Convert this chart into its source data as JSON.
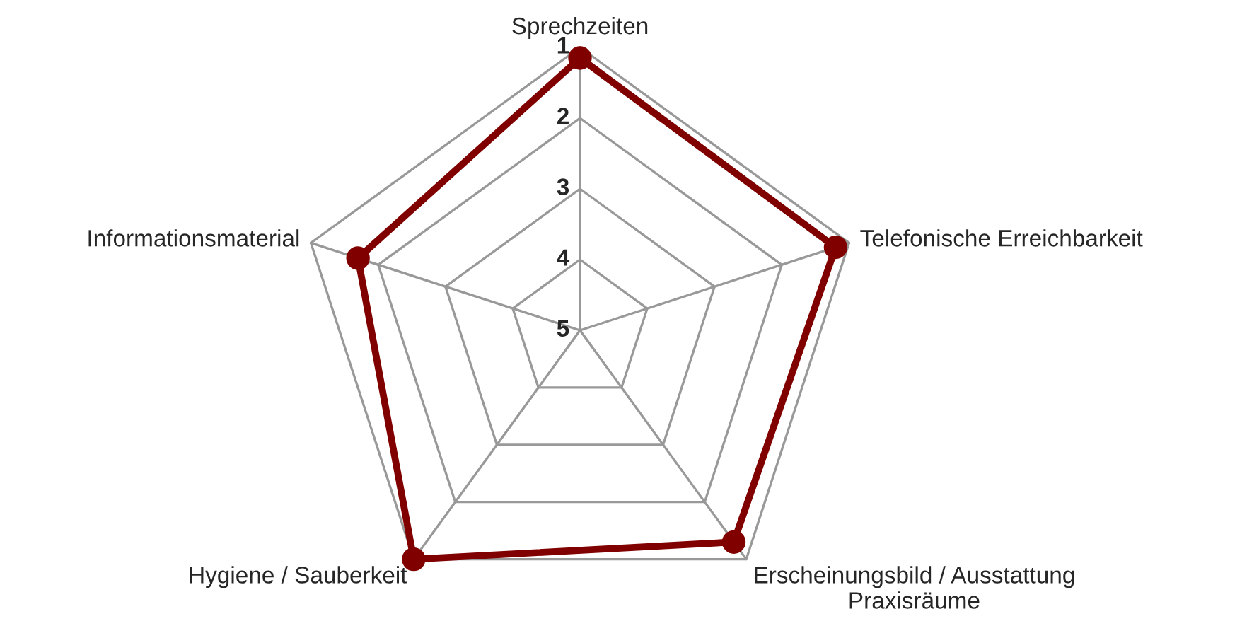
{
  "chart_data": {
    "type": "radar",
    "categories": [
      "Sprechzeiten",
      "Telefonische Erreichbarkeit",
      "Erscheinungsbild / Ausstattung\nPraxisräume",
      "Hygiene / Sauberkeit",
      "Informationsmaterial"
    ],
    "series": [
      {
        "color": "#800000",
        "values": [
          1.15,
          1.2,
          1.3,
          1.0,
          1.7
        ]
      }
    ],
    "ylim": [
      5,
      1
    ],
    "yticks": [
      1,
      2,
      3,
      4,
      5
    ],
    "grid": true,
    "marker": "circle",
    "line_style": "solid"
  }
}
